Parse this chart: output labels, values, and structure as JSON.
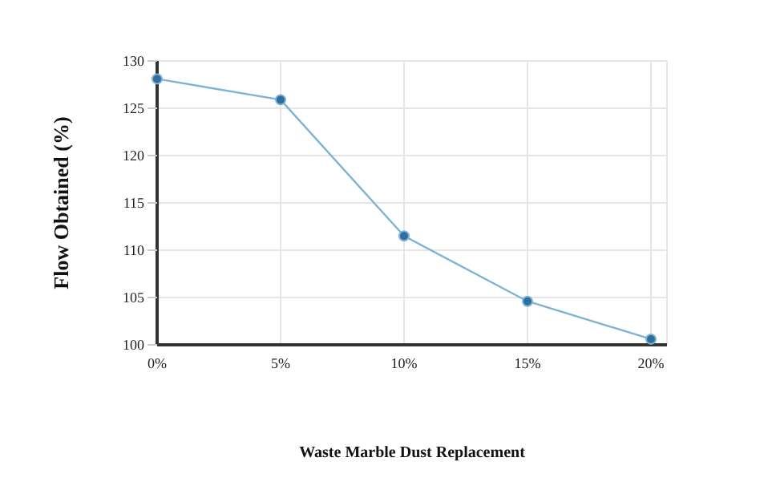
{
  "chart_data": {
    "type": "line",
    "xlabel": "Waste Marble Dust Replacement",
    "ylabel": "Flow Obtained (%)",
    "categories": [
      "0%",
      "5%",
      "10%",
      "15%",
      "20%"
    ],
    "series": [
      {
        "color": "#7fb3d5",
        "values": [
          128.1,
          125.9,
          111.5,
          104.6,
          100.6
        ]
      }
    ],
    "ylim": [
      100,
      130
    ],
    "yticks": [
      100,
      105,
      110,
      115,
      120,
      125,
      130
    ],
    "grid": true,
    "marker": "circle",
    "line_style": "solid"
  }
}
